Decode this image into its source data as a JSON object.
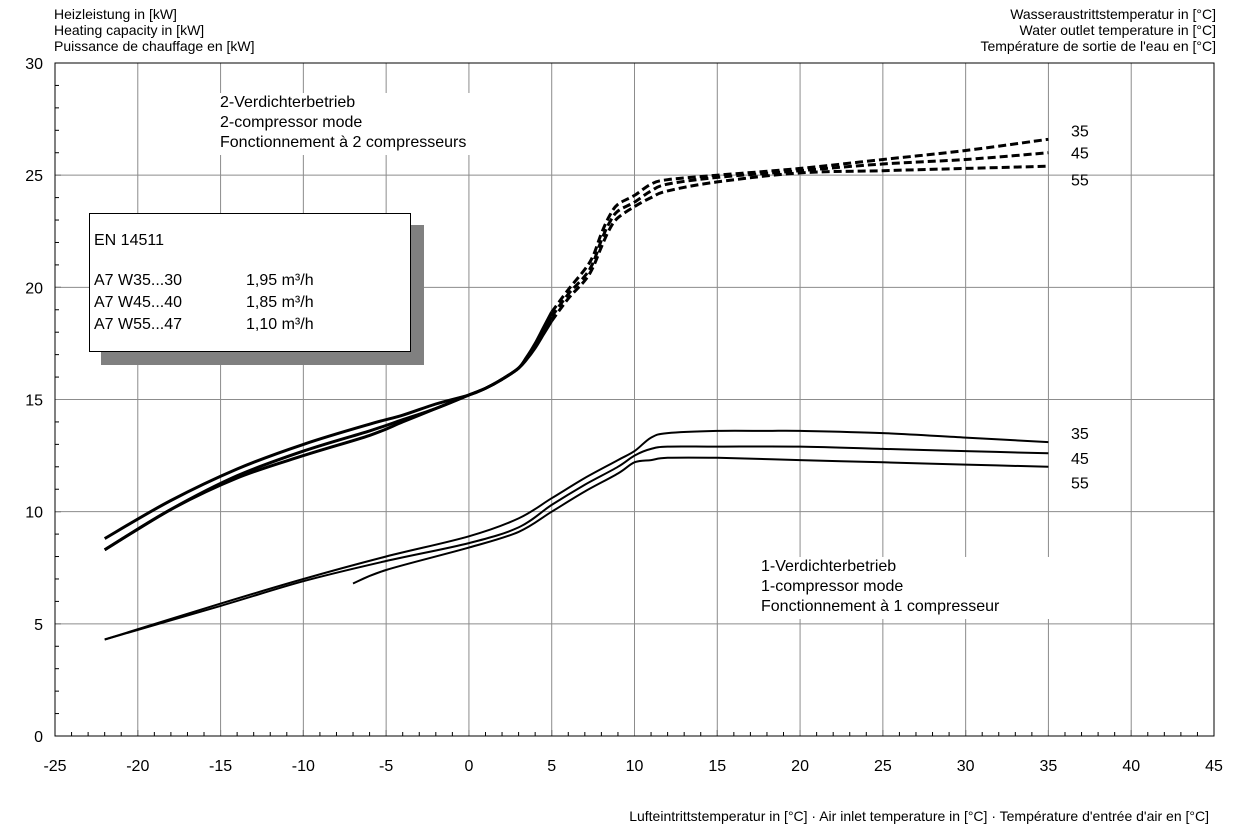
{
  "header": {
    "left": [
      "Heizleistung in [kW]",
      "Heating capacity in [kW]",
      "Puissance de chauffage en [kW]"
    ],
    "right": [
      "Wasseraustrittstemperatur in [°C]",
      "Water outlet temperature in [°C]",
      "Température de sortie de l'eau en [°C]"
    ]
  },
  "xlabel": "Lufteintrittstemperatur in [°C] · Air inlet temperature in [°C] · Température d'entrée d'air en [°C]",
  "annotations": {
    "mode2": [
      "2-Verdichterbetrieb",
      "2-compressor mode",
      "Fonctionnement à 2 compresseurs"
    ],
    "mode1": [
      "1-Verdichterbetrieb",
      "1-compressor mode",
      "Fonctionnement à 1 compresseur"
    ]
  },
  "legend_box": {
    "title": "EN 14511",
    "rows": [
      {
        "label": "A7 W35...30",
        "value": "1,95 m³/h"
      },
      {
        "label": "A7 W45...40",
        "value": "1,85 m³/h"
      },
      {
        "label": "A7 W55...47",
        "value": "1,10 m³/h"
      }
    ]
  },
  "chart_data": {
    "type": "line",
    "xlim": [
      -25,
      45
    ],
    "ylim": [
      0,
      30
    ],
    "xticks": [
      -25,
      -20,
      -15,
      -10,
      -5,
      0,
      5,
      10,
      15,
      20,
      25,
      30,
      35,
      40,
      45
    ],
    "yticks": [
      0,
      5,
      10,
      15,
      20,
      25,
      30
    ],
    "x_minor_step": 1,
    "y_minor_step": 1,
    "grid": true,
    "series": [
      {
        "group": "2-compressor",
        "name": "35",
        "style": "dashed",
        "x": [
          5,
          6,
          7,
          7.5,
          8,
          8.5,
          9,
          10,
          11,
          12,
          15,
          20,
          25,
          30,
          35
        ],
        "y": [
          18.9,
          19.9,
          20.8,
          21.4,
          22.4,
          23.2,
          23.7,
          24.1,
          24.6,
          24.8,
          25.0,
          25.3,
          25.7,
          26.1,
          26.6
        ]
      },
      {
        "group": "2-compressor",
        "name": "45",
        "style": "dashed",
        "x": [
          5,
          6,
          7,
          7.5,
          8,
          8.5,
          9,
          10,
          11,
          12,
          15,
          20,
          25,
          30,
          35
        ],
        "y": [
          18.7,
          19.7,
          20.5,
          21.1,
          22.1,
          22.9,
          23.4,
          23.8,
          24.3,
          24.6,
          24.9,
          25.2,
          25.5,
          25.7,
          26.0
        ]
      },
      {
        "group": "2-compressor",
        "name": "55",
        "style": "dashed",
        "x": [
          5,
          6,
          7,
          7.5,
          8,
          8.5,
          9,
          10,
          11,
          12,
          15,
          20,
          25,
          30,
          35
        ],
        "y": [
          18.5,
          19.5,
          20.3,
          20.9,
          21.8,
          22.6,
          23.1,
          23.6,
          24.0,
          24.3,
          24.7,
          25.1,
          25.2,
          25.3,
          25.4
        ]
      },
      {
        "group": "2-compressor",
        "name": "35",
        "style": "solid",
        "x": [
          -22,
          -18,
          -14,
          -10,
          -6,
          -4,
          -2,
          0,
          1,
          2,
          3,
          3.5,
          4,
          4.5,
          5
        ],
        "y": [
          8.8,
          10.5,
          11.9,
          13.0,
          13.9,
          14.3,
          14.8,
          15.2,
          15.5,
          15.9,
          16.4,
          16.9,
          17.5,
          18.2,
          18.9
        ]
      },
      {
        "group": "2-compressor",
        "name": "45",
        "style": "solid",
        "x": [
          -22,
          -18,
          -14,
          -10,
          -6,
          -4,
          -2,
          0,
          1,
          2,
          3,
          3.5,
          4,
          4.5,
          5
        ],
        "y": [
          8.3,
          10.1,
          11.5,
          12.5,
          13.4,
          14.0,
          14.6,
          15.2,
          15.5,
          15.9,
          16.4,
          16.9,
          17.4,
          18.1,
          18.7
        ]
      },
      {
        "group": "2-compressor",
        "name": "55",
        "style": "solid",
        "x": [
          -22,
          -18,
          -14,
          -10,
          -6,
          -4,
          -2,
          0,
          1,
          2,
          3,
          3.5,
          4,
          4.5,
          5
        ],
        "y": [
          8.3,
          10.1,
          11.6,
          12.7,
          13.6,
          14.1,
          14.6,
          15.2,
          15.5,
          15.9,
          16.4,
          16.8,
          17.3,
          17.9,
          18.5
        ]
      },
      {
        "group": "1-compressor",
        "name": "35",
        "style": "solid",
        "x": [
          -22,
          -15,
          -10,
          -5,
          0,
          3,
          5,
          7,
          9,
          10,
          11,
          12,
          15,
          18,
          20,
          25,
          30,
          35
        ],
        "y": [
          4.3,
          5.9,
          7.0,
          8.0,
          8.9,
          9.7,
          10.6,
          11.5,
          12.3,
          12.7,
          13.3,
          13.5,
          13.6,
          13.6,
          13.6,
          13.5,
          13.3,
          13.1
        ]
      },
      {
        "group": "1-compressor",
        "name": "45",
        "style": "solid",
        "x": [
          -22,
          -15,
          -10,
          -5,
          0,
          3,
          5,
          7,
          9,
          10,
          11,
          12,
          15,
          20,
          25,
          30,
          35
        ],
        "y": [
          4.3,
          5.8,
          6.9,
          7.8,
          8.6,
          9.3,
          10.3,
          11.2,
          12.0,
          12.5,
          12.8,
          12.9,
          12.9,
          12.9,
          12.8,
          12.7,
          12.6
        ]
      },
      {
        "group": "1-compressor",
        "name": "55",
        "style": "solid",
        "x": [
          -7,
          -5,
          0,
          3,
          5,
          7,
          9,
          10,
          11,
          12,
          15,
          20,
          25,
          30,
          35
        ],
        "y": [
          6.8,
          7.4,
          8.4,
          9.1,
          10.0,
          10.9,
          11.7,
          12.2,
          12.3,
          12.4,
          12.4,
          12.3,
          12.2,
          12.1,
          12.0
        ]
      }
    ],
    "end_labels": [
      {
        "text": "35",
        "y": 27.0
      },
      {
        "text": "45",
        "y": 26.0
      },
      {
        "text": "55",
        "y": 24.8
      },
      {
        "text": "35",
        "y": 13.5
      },
      {
        "text": "45",
        "y": 12.4
      },
      {
        "text": "55",
        "y": 11.3
      }
    ]
  }
}
